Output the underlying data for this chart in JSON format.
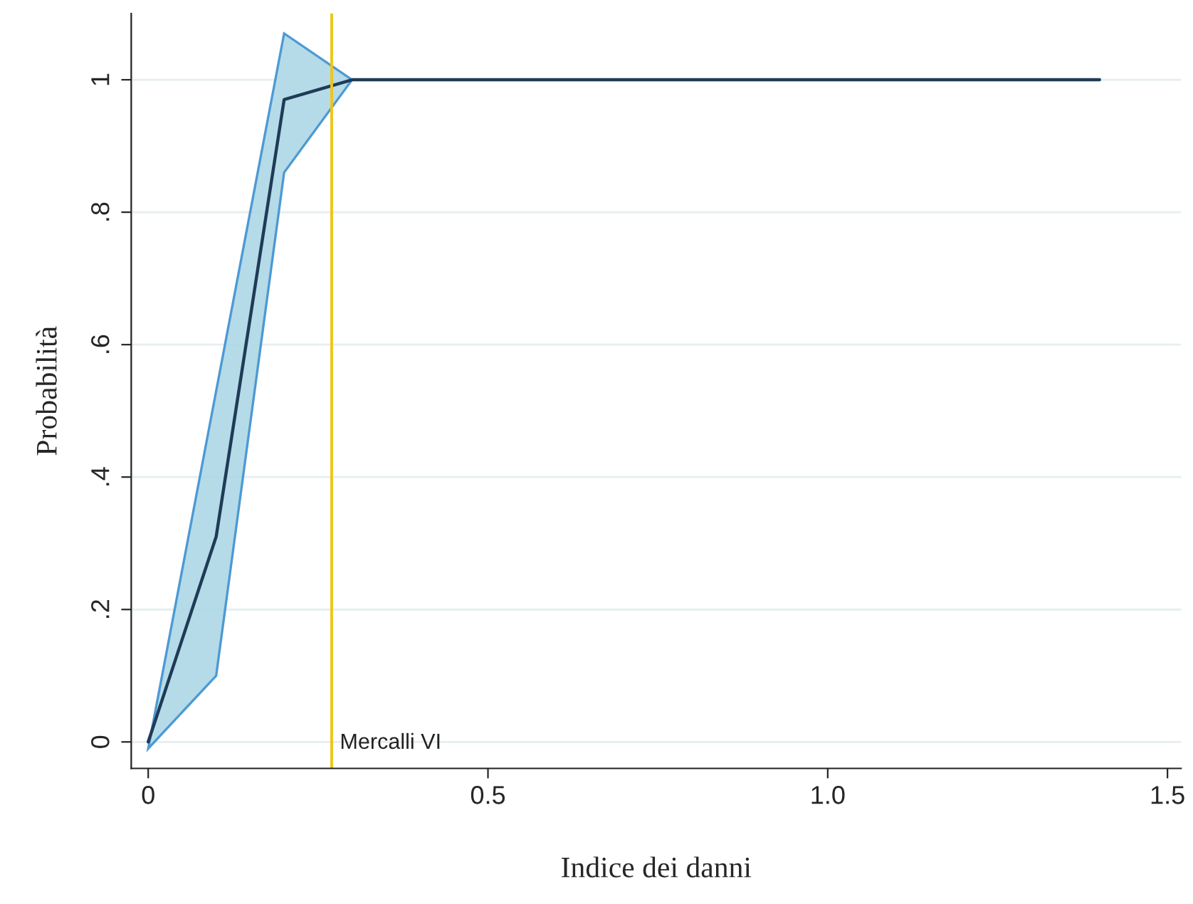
{
  "chart_data": {
    "type": "line",
    "xlabel": "Indice dei danni",
    "ylabel": "Probabilità",
    "series": [
      {
        "color": "#1f3b57",
        "x": [
          0,
          0.1,
          0.2,
          0.3,
          1.4
        ],
        "values": [
          0,
          0.31,
          0.97,
          1.0,
          1.0
        ],
        "lower": [
          -0.01,
          0.1,
          0.86,
          1.0,
          1.0
        ],
        "upper": [
          -0.01,
          0.53,
          1.07,
          1.0,
          1.0
        ]
      }
    ],
    "ref_lines": [
      {
        "axis": "x",
        "value": 0.27,
        "label": "Mercalli VI",
        "color": "#f0c419"
      }
    ],
    "xlim": [
      -0.025,
      1.52
    ],
    "ylim": [
      -0.04,
      1.1
    ],
    "xticks": [
      0,
      0.5,
      {
        "value": 1.0,
        "label": "1.0"
      },
      1.5
    ],
    "yticks": [
      0,
      {
        "value": 0.2,
        "label": ".2"
      },
      {
        "value": 0.4,
        "label": ".4"
      },
      {
        "value": 0.6,
        "label": ".6"
      },
      {
        "value": 0.8,
        "label": ".8"
      },
      1
    ],
    "grid": "y",
    "marker": "none",
    "line_style": "solid"
  }
}
